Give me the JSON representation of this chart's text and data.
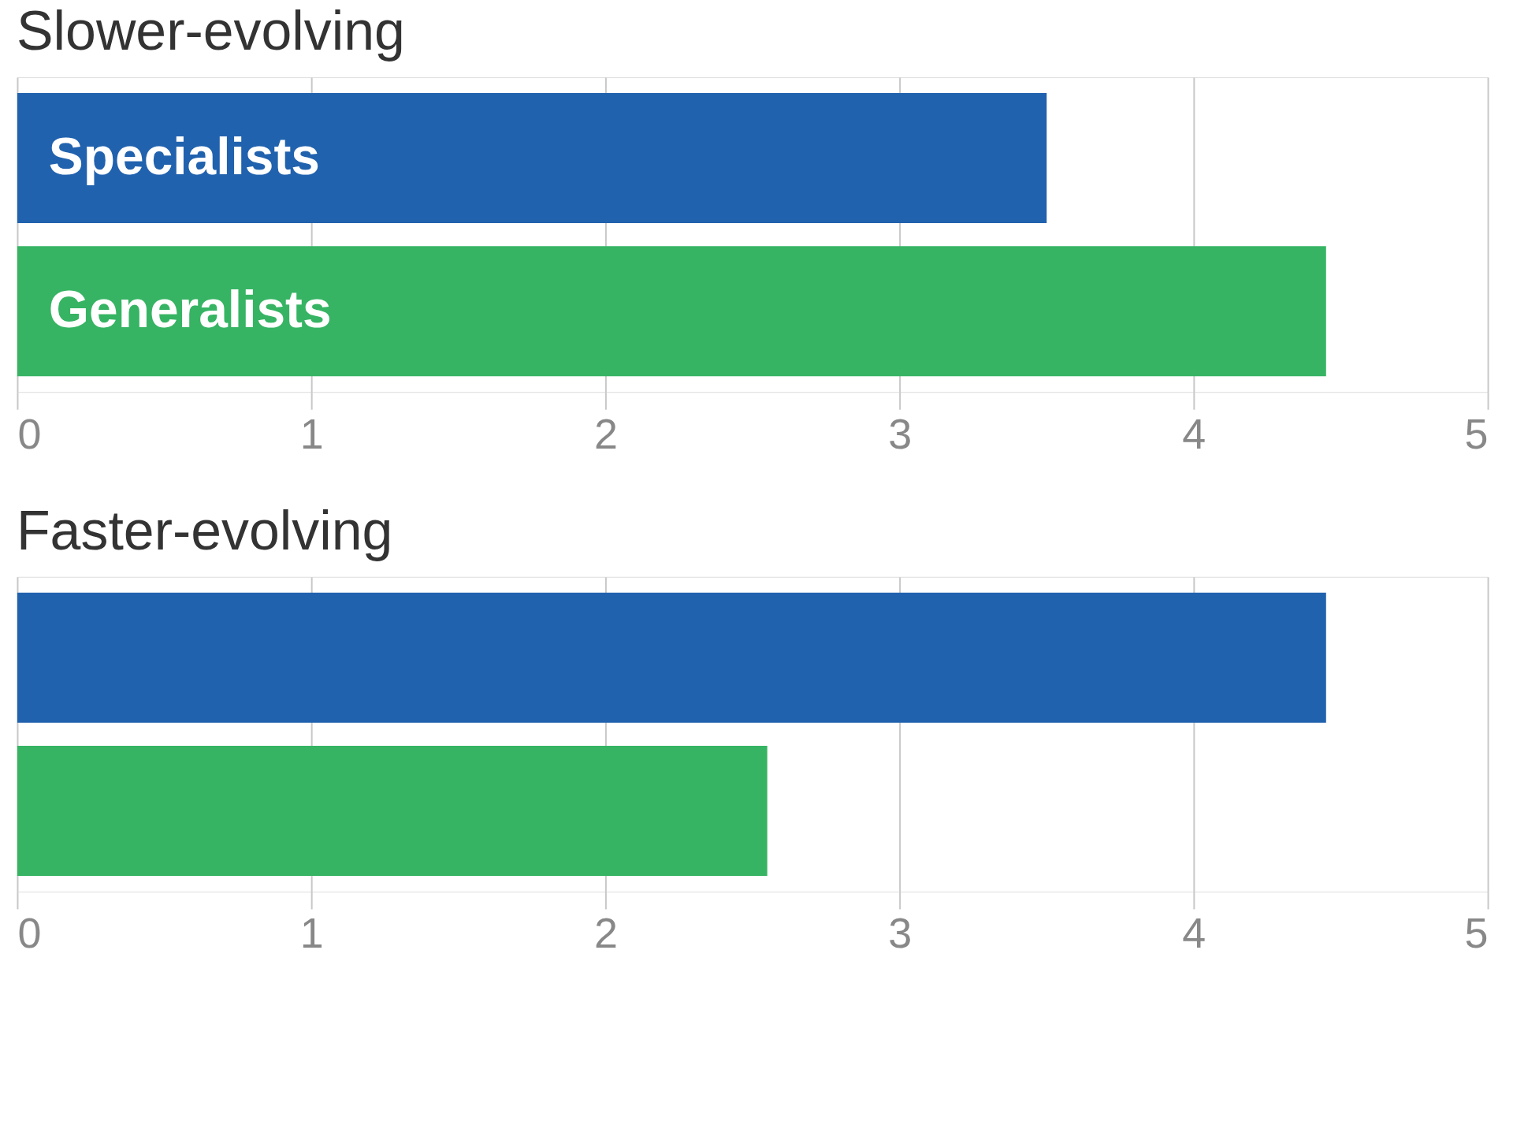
{
  "chart_data": [
    {
      "type": "bar",
      "orientation": "horizontal",
      "title": "Slower-evolving",
      "categories": [
        null
      ],
      "series": [
        {
          "name": "Specialists",
          "color": "#2162ae",
          "values": [
            3.5
          ]
        },
        {
          "name": "Generalists",
          "color": "#36b463",
          "values": [
            4.45
          ]
        }
      ],
      "xlim": [
        0,
        5
      ],
      "xticks": [
        0,
        1,
        2,
        3,
        4,
        5
      ],
      "grid": "x",
      "legend": false,
      "tick_labels": "x"
    },
    {
      "type": "bar",
      "orientation": "horizontal",
      "title": "Faster-evolving",
      "categories": [
        null
      ],
      "series": [
        {
          "color": "#2162ae",
          "values": [
            4.45
          ]
        },
        {
          "color": "#36b463",
          "values": [
            2.55
          ]
        }
      ],
      "xlim": [
        0,
        5
      ],
      "xticks": [
        0,
        1,
        2,
        3,
        4,
        5
      ],
      "grid": "x",
      "legend": false,
      "tick_labels": "x"
    }
  ]
}
